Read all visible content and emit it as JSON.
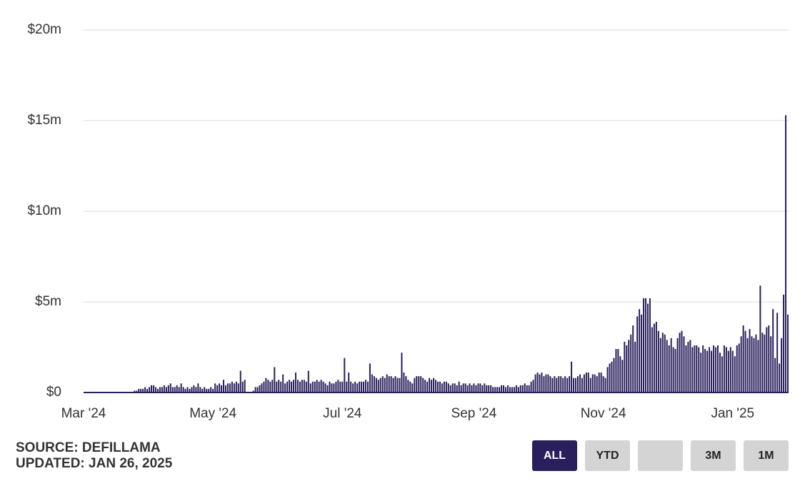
{
  "chart_data": {
    "type": "bar",
    "categories": [
      "Mar '24",
      null,
      null,
      null,
      null,
      null,
      null,
      null,
      null,
      null,
      null,
      null,
      null,
      null,
      null,
      null,
      null,
      null,
      null,
      null,
      null,
      null,
      null,
      null,
      null,
      null,
      null,
      null,
      null,
      null,
      null,
      null,
      null,
      null,
      null,
      null,
      null,
      null,
      null,
      null,
      null,
      null,
      null,
      null,
      null,
      null,
      null,
      null,
      null,
      null,
      null,
      null,
      null,
      null,
      null,
      null,
      null,
      null,
      null,
      null,
      null,
      "May '24",
      null,
      null,
      null,
      null,
      null,
      null,
      null,
      null,
      null,
      null,
      null,
      null,
      null,
      null,
      null,
      null,
      null,
      null,
      null,
      null,
      null,
      null,
      null,
      null,
      null,
      null,
      null,
      null,
      null,
      null,
      null,
      null,
      null,
      null,
      null,
      null,
      null,
      null,
      null,
      null,
      null,
      null,
      null,
      null,
      null,
      null,
      null,
      null,
      null,
      null,
      null,
      null,
      null,
      null,
      null,
      null,
      null,
      null,
      null,
      null,
      "Jul '24",
      null,
      null,
      null,
      null,
      null,
      null,
      null,
      null,
      null,
      null,
      null,
      null,
      null,
      null,
      null,
      null,
      null,
      null,
      null,
      null,
      null,
      null,
      null,
      null,
      null,
      null,
      null,
      null,
      null,
      null,
      null,
      null,
      null,
      null,
      null,
      null,
      null,
      null,
      null,
      null,
      null,
      null,
      null,
      null,
      null,
      null,
      null,
      null,
      null,
      null,
      null,
      null,
      null,
      null,
      null,
      null,
      null,
      null,
      null,
      null,
      null,
      "Sep '24",
      null,
      null,
      null,
      null,
      null,
      null,
      null,
      null,
      null,
      null,
      null,
      null,
      null,
      null,
      null,
      null,
      null,
      null,
      null,
      null,
      null,
      null,
      null,
      null,
      null,
      null,
      null,
      null,
      null,
      null,
      null,
      null,
      null,
      null,
      null,
      null,
      null,
      null,
      null,
      null,
      null,
      null,
      null,
      null,
      null,
      null,
      null,
      null,
      null,
      null,
      null,
      null,
      null,
      null,
      null,
      null,
      null,
      null,
      null,
      null,
      "Nov '24",
      null,
      null,
      null,
      null,
      null,
      null,
      null,
      null,
      null,
      null,
      null,
      null,
      null,
      null,
      null,
      null,
      null,
      null,
      null,
      null,
      null,
      null,
      null,
      null,
      null,
      null,
      null,
      null,
      null,
      null,
      null,
      null,
      null,
      null,
      null,
      null,
      null,
      null,
      null,
      null,
      null,
      null,
      null,
      null,
      null,
      null,
      null,
      null,
      null,
      null,
      null,
      null,
      null,
      null,
      null,
      null,
      null,
      null,
      null,
      null,
      "Jan '25",
      null,
      null,
      null,
      null,
      null,
      null,
      null,
      null,
      null,
      null,
      null,
      null,
      null,
      null,
      null,
      null,
      null,
      null,
      null,
      null,
      null,
      null,
      null,
      null,
      null,
      null
    ],
    "values": [
      0,
      0,
      0,
      0,
      0,
      0,
      0,
      0,
      0,
      0,
      0,
      0,
      0,
      0,
      0,
      0,
      0,
      0,
      0,
      0,
      0,
      0,
      0,
      0,
      0.1,
      0.1,
      0.2,
      0.2,
      0.2,
      0.3,
      0.2,
      0.3,
      0.4,
      0.4,
      0.3,
      0.2,
      0.3,
      0.3,
      0.4,
      0.3,
      0.4,
      0.5,
      0.3,
      0.3,
      0.4,
      0.3,
      0.5,
      0.3,
      0.2,
      0.3,
      0.2,
      0.3,
      0.4,
      0.3,
      0.5,
      0.3,
      0.2,
      0.3,
      0.2,
      0.2,
      0.3,
      0.2,
      0.5,
      0.4,
      0.5,
      0.4,
      0.7,
      0.4,
      0.5,
      0.5,
      0.6,
      0.5,
      0.6,
      0.5,
      1.2,
      0.6,
      0.7,
      0,
      0,
      0,
      0.1,
      0.3,
      0.3,
      0.4,
      0.5,
      0.6,
      0.8,
      0.7,
      0.6,
      0.7,
      1.4,
      0.6,
      0.7,
      0.6,
      1.0,
      0.5,
      0.6,
      0.7,
      0.6,
      0.7,
      1.1,
      0.7,
      0.6,
      0.7,
      0.7,
      0.6,
      1.2,
      0.5,
      0.6,
      0.6,
      0.7,
      0.6,
      0.7,
      0.6,
      0.5,
      0.4,
      0.6,
      0.5,
      0.5,
      0.6,
      0.7,
      0.6,
      0.6,
      1.9,
      0.6,
      1.1,
      0.6,
      0.5,
      0.6,
      0.5,
      0.6,
      0.6,
      0.6,
      0.7,
      0.6,
      1.6,
      1.0,
      0.9,
      0.8,
      0.7,
      0.8,
      0.9,
      0.8,
      1.0,
      0.9,
      0.9,
      0.8,
      0.9,
      0.8,
      0.8,
      2.2,
      1.1,
      0.9,
      0.7,
      0.6,
      0.5,
      0.8,
      0.9,
      0.9,
      0.9,
      0.8,
      0.7,
      0.6,
      0.8,
      0.7,
      0.8,
      0.7,
      0.6,
      0.6,
      0.5,
      0.6,
      0.6,
      0.5,
      0.4,
      0.5,
      0.5,
      0.4,
      0.6,
      0.4,
      0.5,
      0.5,
      0.4,
      0.5,
      0.4,
      0.5,
      0.4,
      0.5,
      0.5,
      0.4,
      0.5,
      0.4,
      0.4,
      0.4,
      0.3,
      0.3,
      0.3,
      0.3,
      0.4,
      0.4,
      0.3,
      0.4,
      0.3,
      0.3,
      0.3,
      0.4,
      0.3,
      0.4,
      0.4,
      0.5,
      0.4,
      0.4,
      0.6,
      0.7,
      1.0,
      1.1,
      1.0,
      1.1,
      0.9,
      1.0,
      1.0,
      0.9,
      0.8,
      0.9,
      0.8,
      0.9,
      0.9,
      0.8,
      0.9,
      0.8,
      0.9,
      1.7,
      0.8,
      0.8,
      0.9,
      1.0,
      0.8,
      1.0,
      1.1,
      1.1,
      0.8,
      1.0,
      1.0,
      0.9,
      1.1,
      1.1,
      0.9,
      0.8,
      1.4,
      1.6,
      1.7,
      1.9,
      2.4,
      2.4,
      2.0,
      1.8,
      2.8,
      2.6,
      2.9,
      3.2,
      3.7,
      2.8,
      4.2,
      4.6,
      4.3,
      5.2,
      5.2,
      4.9,
      5.2,
      3.6,
      3.8,
      3.9,
      3.4,
      3.0,
      3.3,
      3.2,
      2.9,
      2.6,
      3.0,
      2.5,
      2.4,
      3.0,
      3.3,
      3.4,
      3.1,
      2.6,
      2.8,
      2.9,
      2.5,
      2.6,
      2.6,
      2.5,
      2.2,
      2.6,
      2.4,
      2.3,
      2.5,
      2.3,
      2.6,
      2.5,
      2.6,
      2.2,
      2.0,
      2.6,
      2.5,
      2.3,
      2.5,
      2.3,
      2.0,
      2.6,
      2.7,
      3.1,
      3.7,
      3.4,
      3.0,
      3.5,
      3.1,
      3.0,
      3.2,
      2.9,
      5.9,
      3.3,
      3.2,
      3.6,
      3.7,
      3.1,
      4.6,
      1.9,
      4.4,
      1.6,
      3.0,
      5.4,
      15.3,
      4.3
    ],
    "color": "#2a1f5c",
    "ylim": [
      0,
      20
    ],
    "yticks": [
      {
        "value": 0,
        "label": "$0"
      },
      {
        "value": 5,
        "label": "$5m"
      },
      {
        "value": 10,
        "label": "$10m"
      },
      {
        "value": 15,
        "label": "$15m"
      },
      {
        "value": 20,
        "label": "$20m"
      }
    ],
    "grid": true
  },
  "footer": {
    "source": "SOURCE: DEFILLAMA",
    "updated": "UPDATED: JAN 26, 2025"
  },
  "controls": {
    "buttons": [
      "ALL",
      "YTD",
      "3M",
      "1M"
    ]
  }
}
